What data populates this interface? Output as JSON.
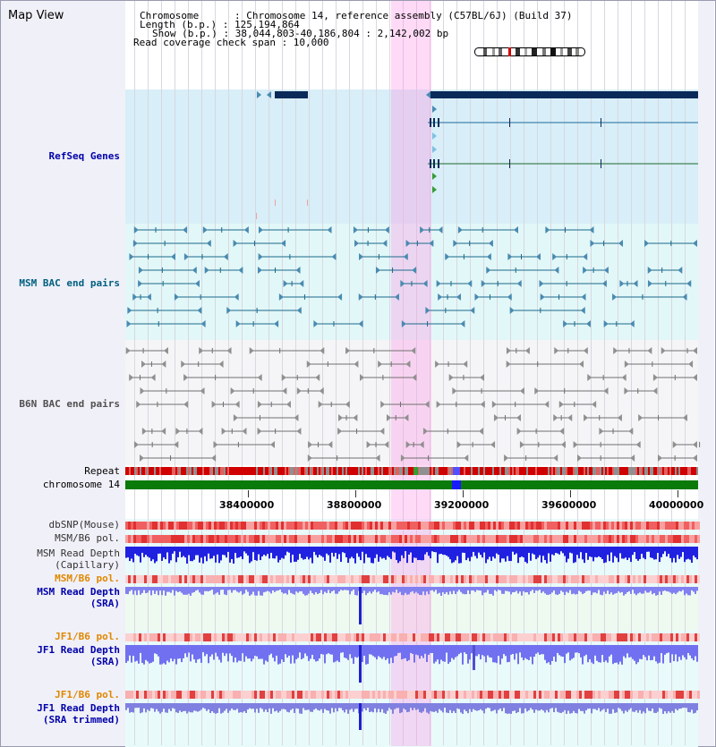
{
  "title": "Map View",
  "header": {
    "chromosome": "Chromosome      : Chromosome 14, reference assembly (C57BL/6J) (Build 37)",
    "length": "Length (b.p.) : 125,194,864",
    "show": "Show (b.p.) : 38,044,803-40,186,804 : 2,142,002 bp",
    "coverage": "Read coverage check span : 10,000"
  },
  "tracks": {
    "refseq": "RefSeq Genes",
    "msm_bac": "MSM BAC end pairs",
    "b6n_bac": "B6N BAC end pairs",
    "repeat": "Repeat",
    "chromosome": "chromosome 14",
    "dbsnp": "dbSNP(Mouse)",
    "msm_b6_pol_1": "MSM/B6 pol.",
    "msm_depth_cap_1": "MSM Read Depth",
    "msm_depth_cap_2": "(Capillary)",
    "msm_b6_pol_2": "MSM/B6 pol.",
    "msm_depth_sra_1": "MSM Read Depth",
    "msm_depth_sra_2": "(SRA)",
    "jf1_b6_pol_1": "JF1/B6 pol.",
    "jf1_depth_sra_1": "JF1 Read Depth",
    "jf1_depth_sra_2": "(SRA)",
    "jf1_b6_pol_2": "JF1/B6 pol.",
    "jf1_depth_trim_1": "JF1 Read Depth",
    "jf1_depth_trim_2": "(SRA trimmed)"
  },
  "axis": {
    "ticks": [
      "38400000",
      "38800000",
      "39200000",
      "39600000",
      "40000000"
    ]
  },
  "colors": {
    "refseq_label": "#0000aa",
    "msm_label": "#006080",
    "b6n_label": "#505050",
    "orange_label": "#e08800",
    "blue_label": "#0000aa",
    "gene_navy": "#0a2a5a",
    "highlight": "#ff96e6"
  }
}
